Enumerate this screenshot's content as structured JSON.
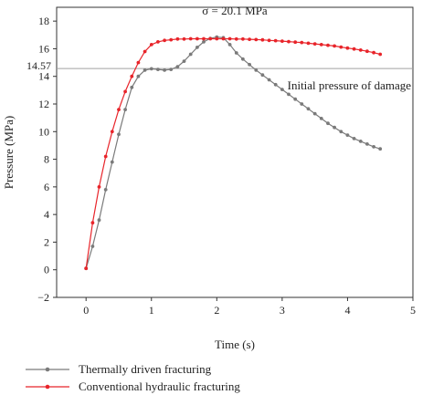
{
  "chart_data": {
    "type": "line",
    "title": "σ = 20.1 MPa",
    "xlabel": "Time (s)",
    "ylabel": "Pressure (MPa)",
    "xlim": [
      -0.45,
      5
    ],
    "ylim": [
      -2,
      19
    ],
    "xticks": [
      0,
      1,
      2,
      3,
      4,
      5
    ],
    "yticks": [
      -2,
      0,
      2,
      4,
      6,
      8,
      10,
      12,
      14,
      16,
      18
    ],
    "reference_line": {
      "y": 14.57,
      "tick_label": "14.57",
      "label": "Initial pressure of damage",
      "color": "#a0a0a0"
    },
    "legend_position": "bottom-left",
    "series": [
      {
        "name": "Thermally driven fracturing",
        "color": "#7a7a7a",
        "marker": "circle",
        "x": [
          0,
          0.1,
          0.2,
          0.3,
          0.4,
          0.5,
          0.6,
          0.7,
          0.8,
          0.9,
          1.0,
          1.1,
          1.2,
          1.3,
          1.4,
          1.5,
          1.6,
          1.7,
          1.8,
          1.9,
          2.0,
          2.1,
          2.2,
          2.3,
          2.4,
          2.5,
          2.6,
          2.7,
          2.8,
          2.9,
          3.0,
          3.1,
          3.2,
          3.3,
          3.4,
          3.5,
          3.6,
          3.7,
          3.8,
          3.9,
          4.0,
          4.1,
          4.2,
          4.3,
          4.4,
          4.5
        ],
        "y": [
          0.1,
          1.7,
          3.6,
          5.8,
          7.8,
          9.8,
          11.6,
          13.2,
          14.0,
          14.45,
          14.55,
          14.5,
          14.45,
          14.5,
          14.7,
          15.1,
          15.6,
          16.1,
          16.5,
          16.75,
          16.85,
          16.8,
          16.3,
          15.7,
          15.25,
          14.85,
          14.45,
          14.1,
          13.75,
          13.4,
          13.05,
          12.7,
          12.35,
          12.0,
          11.65,
          11.3,
          10.95,
          10.6,
          10.3,
          10.0,
          9.75,
          9.5,
          9.3,
          9.1,
          8.9,
          8.75
        ]
      },
      {
        "name": "Conventional hydraulic fracturing",
        "color": "#e8242a",
        "marker": "circle",
        "x": [
          0,
          0.1,
          0.2,
          0.3,
          0.4,
          0.5,
          0.6,
          0.7,
          0.8,
          0.9,
          1.0,
          1.1,
          1.2,
          1.3,
          1.4,
          1.5,
          1.6,
          1.7,
          1.8,
          1.9,
          2.0,
          2.1,
          2.2,
          2.3,
          2.4,
          2.5,
          2.6,
          2.7,
          2.8,
          2.9,
          3.0,
          3.1,
          3.2,
          3.3,
          3.4,
          3.5,
          3.6,
          3.7,
          3.8,
          3.9,
          4.0,
          4.1,
          4.2,
          4.3,
          4.4,
          4.5
        ],
        "y": [
          0.1,
          3.4,
          6.0,
          8.2,
          10.0,
          11.6,
          12.9,
          14.0,
          15.0,
          15.8,
          16.3,
          16.5,
          16.6,
          16.65,
          16.7,
          16.7,
          16.72,
          16.72,
          16.72,
          16.72,
          16.72,
          16.72,
          16.72,
          16.7,
          16.7,
          16.68,
          16.66,
          16.64,
          16.6,
          16.58,
          16.55,
          16.52,
          16.48,
          16.45,
          16.4,
          16.35,
          16.3,
          16.25,
          16.2,
          16.12,
          16.05,
          15.98,
          15.9,
          15.82,
          15.72,
          15.6
        ]
      }
    ]
  }
}
